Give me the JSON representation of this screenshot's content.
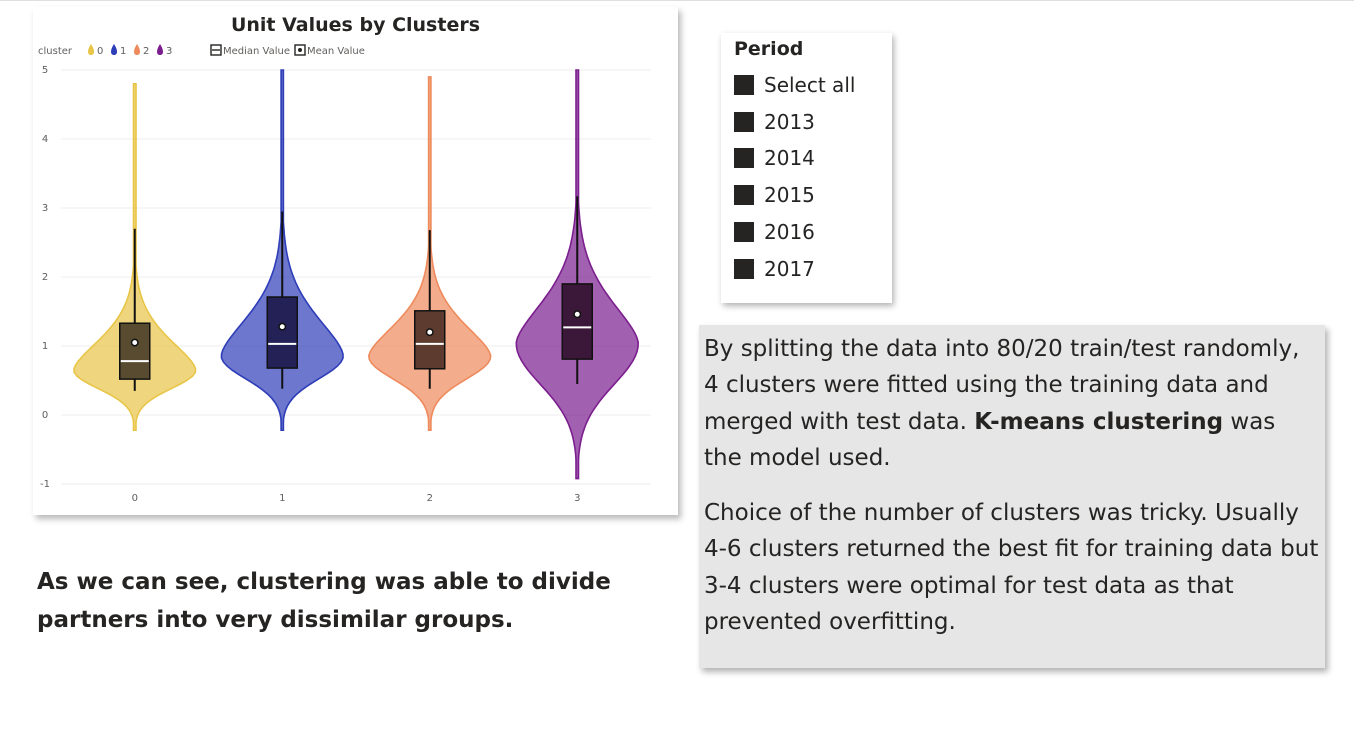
{
  "chart": {
    "title": "Unit Values by Clusters",
    "legend": {
      "cluster_label": "cluster",
      "median_label": "Median Value",
      "mean_label": "Mean Value"
    }
  },
  "chart_data": {
    "type": "violin",
    "title": "Unit Values by Clusters",
    "xlabel": "",
    "ylabel": "",
    "ylim": [
      -1,
      5
    ],
    "y_ticks": [
      "5",
      "4",
      "3",
      "2",
      "1",
      "0",
      "-1"
    ],
    "categories": [
      "0",
      "1",
      "2",
      "3"
    ],
    "legend_title": "cluster",
    "legend_placement": "top-left",
    "grid": true,
    "series": [
      {
        "name": "0",
        "color": "#E8C547",
        "dark": "#584B30",
        "min": -0.22,
        "max": 4.8,
        "q1": 0.52,
        "median": 0.78,
        "q3": 1.33,
        "whisker_low": 0.35,
        "whisker_high": 2.7,
        "mean": 1.05
      },
      {
        "name": "1",
        "color": "#2E3DB8",
        "dark": "#232155",
        "min": -0.22,
        "max": 5.0,
        "q1": 0.68,
        "median": 1.03,
        "q3": 1.71,
        "whisker_low": 0.38,
        "whisker_high": 2.95,
        "mean": 1.28
      },
      {
        "name": "2",
        "color": "#EE8A5C",
        "dark": "#5D3B2F",
        "min": -0.22,
        "max": 4.9,
        "q1": 0.67,
        "median": 1.03,
        "q3": 1.51,
        "whisker_low": 0.38,
        "whisker_high": 2.68,
        "mean": 1.2
      },
      {
        "name": "3",
        "color": "#7B1E8E",
        "dark": "#3B1839",
        "min": -0.92,
        "max": 5.0,
        "q1": 0.81,
        "median": 1.27,
        "q3": 1.9,
        "whisker_low": 0.45,
        "whisker_high": 3.17,
        "mean": 1.46
      }
    ]
  },
  "slicer": {
    "title": "Period",
    "items": [
      "Select all",
      "2013",
      "2014",
      "2015",
      "2016",
      "2017"
    ]
  },
  "notes": {
    "p1_text_a": "By splitting the data into 80/20 train/test randomly, 4 clusters were fitted using the training data and merged with test data. ",
    "p1_bold": "K-means clustering",
    "p1_text_b": " was the model used.",
    "p2": "Choice of the number of clusters was tricky. Usually 4-6 clusters returned the best fit for training data but 3-4 clusters were optimal for test data as that prevented overfitting."
  },
  "caption": "As we can see, clustering was able to divide partners into very dissimilar groups."
}
